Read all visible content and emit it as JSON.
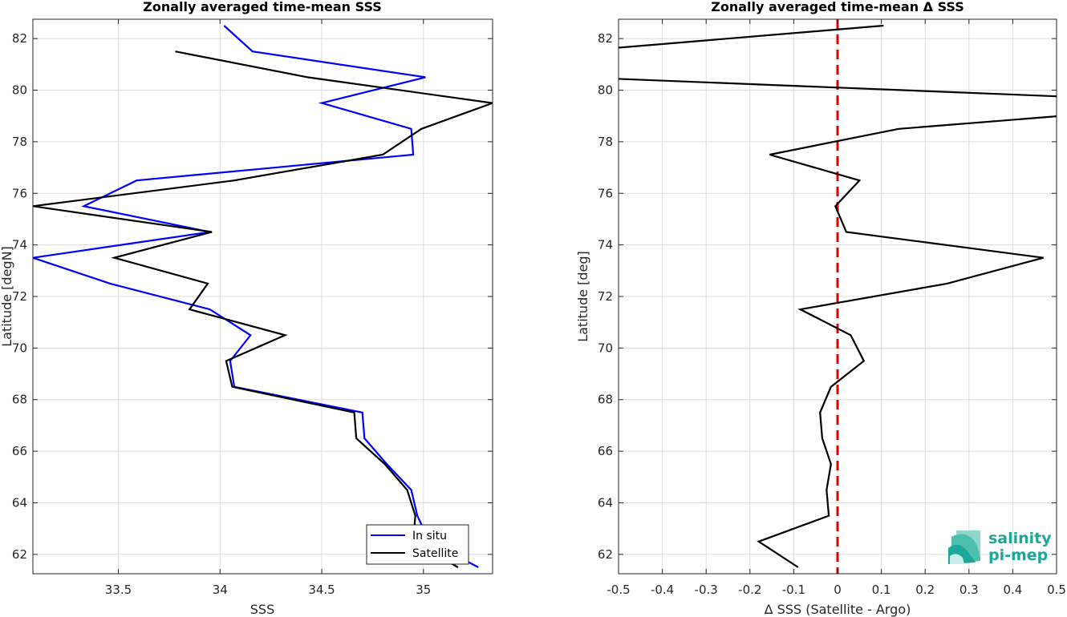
{
  "chart_data": [
    {
      "type": "line",
      "title": "Zonally averaged time-mean SSS",
      "xlabel": "SSS",
      "ylabel": "Latitude [degN]",
      "xlim": [
        33.08,
        35.34
      ],
      "ylim": [
        61.25,
        82.75
      ],
      "xticks": [
        33.5,
        34,
        34.5,
        35
      ],
      "xtick_labels": [
        "33.5",
        "34",
        "34.5",
        "35"
      ],
      "yticks": [
        62,
        64,
        66,
        68,
        70,
        72,
        74,
        76,
        78,
        80,
        82
      ],
      "ytick_labels": [
        "62",
        "64",
        "66",
        "68",
        "70",
        "72",
        "74",
        "76",
        "78",
        "80",
        "82"
      ],
      "grid": true,
      "legend": "bottom-right",
      "series": [
        {
          "name": "In situ",
          "color": "#0000ff",
          "points": [
            [
              35.27,
              61.5
            ],
            [
              35.03,
              62.5
            ],
            [
              34.97,
              63.5
            ],
            [
              34.94,
              64.5
            ],
            [
              34.82,
              65.5
            ],
            [
              34.71,
              66.5
            ],
            [
              34.7,
              67.5
            ],
            [
              34.07,
              68.5
            ],
            [
              34.05,
              69.5
            ],
            [
              34.15,
              70.5
            ],
            [
              33.95,
              71.5
            ],
            [
              33.46,
              72.5
            ],
            [
              33.08,
              73.5
            ],
            [
              33.95,
              74.5
            ],
            [
              33.33,
              75.5
            ],
            [
              33.59,
              76.5
            ],
            [
              34.95,
              77.5
            ],
            [
              34.94,
              78.5
            ],
            [
              34.5,
              79.5
            ],
            [
              35.01,
              80.5
            ],
            [
              34.16,
              81.5
            ],
            [
              34.02,
              82.5
            ]
          ]
        },
        {
          "name": "Satellite",
          "color": "#000000",
          "points": [
            [
              35.17,
              61.5
            ],
            [
              34.95,
              62.5
            ],
            [
              34.96,
              63.5
            ],
            [
              34.92,
              64.5
            ],
            [
              34.81,
              65.5
            ],
            [
              34.67,
              66.5
            ],
            [
              34.66,
              67.5
            ],
            [
              34.06,
              68.5
            ],
            [
              34.03,
              69.5
            ],
            [
              34.32,
              70.5
            ],
            [
              33.85,
              71.5
            ],
            [
              33.94,
              72.5
            ],
            [
              33.48,
              73.5
            ],
            [
              33.96,
              74.5
            ],
            [
              33.08,
              75.5
            ],
            [
              34.07,
              76.5
            ],
            [
              34.8,
              77.5
            ],
            [
              34.99,
              78.5
            ],
            [
              35.34,
              79.5
            ],
            [
              34.43,
              80.5
            ],
            [
              33.78,
              81.5
            ]
          ]
        }
      ]
    },
    {
      "type": "line",
      "title": "Zonally averaged time-mean Δ SSS",
      "xlabel": "Δ SSS (Satellite - Argo)",
      "ylabel": "Latitude [deg]",
      "xlim": [
        -0.5,
        0.5
      ],
      "ylim": [
        61.25,
        82.75
      ],
      "xticks": [
        -0.5,
        -0.4,
        -0.3,
        -0.2,
        -0.1,
        0,
        0.1,
        0.2,
        0.3,
        0.4,
        0.5
      ],
      "xtick_labels": [
        "-0.5",
        "-0.4",
        "-0.3",
        "-0.2",
        "-0.1",
        "0",
        "0.1",
        "0.2",
        "0.3",
        "0.4",
        "0.5"
      ],
      "yticks": [
        62,
        64,
        66,
        68,
        70,
        72,
        74,
        76,
        78,
        80,
        82
      ],
      "ytick_labels": [
        "62",
        "64",
        "66",
        "68",
        "70",
        "72",
        "74",
        "76",
        "78",
        "80",
        "82"
      ],
      "grid": true,
      "zero_line": {
        "x": 0,
        "color": "#e00000",
        "style": "dashed"
      },
      "series": [
        {
          "color": "#000000",
          "points": [
            [
              -0.09,
              61.5
            ],
            [
              -0.18,
              62.5
            ],
            [
              -0.02,
              63.5
            ],
            [
              -0.025,
              64.5
            ],
            [
              -0.015,
              65.5
            ],
            [
              -0.035,
              66.5
            ],
            [
              -0.04,
              67.5
            ],
            [
              -0.015,
              68.5
            ],
            [
              0.06,
              69.5
            ],
            [
              0.03,
              70.5
            ],
            [
              -0.085,
              71.5
            ],
            [
              0.25,
              72.5
            ],
            [
              0.47,
              73.5
            ],
            [
              0.02,
              74.5
            ],
            [
              -0.005,
              75.5
            ],
            [
              0.05,
              76.5
            ],
            [
              -0.155,
              77.5
            ],
            [
              0.14,
              78.5
            ],
            [
              0.51,
              79.0
            ],
            [
              0.52,
              79.75
            ],
            [
              -0.52,
              80.45
            ],
            [
              -0.52,
              81.62
            ],
            [
              0.105,
              82.5
            ]
          ]
        }
      ]
    }
  ],
  "logo": {
    "line1": "salinity",
    "line2": "pi-mep",
    "color": "#1ba89a"
  }
}
